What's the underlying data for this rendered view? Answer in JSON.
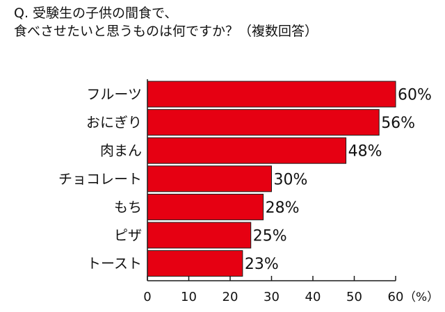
{
  "title": {
    "line1": "Q. 受験生の子供の間食で、",
    "line2": "食べさせたいと思うものは何ですか？（複数回答）"
  },
  "colors": {
    "bar": "#e60012",
    "bar_stroke": "#1a1a1a",
    "axis": "#1a1a1a",
    "background": "#ffffff"
  },
  "chart_data": {
    "type": "bar",
    "orientation": "horizontal",
    "categories": [
      "フルーツ",
      "おにぎり",
      "肉まん",
      "チョコレート",
      "もち",
      "ピザ",
      "トースト"
    ],
    "values": [
      60,
      56,
      48,
      30,
      28,
      25,
      23
    ],
    "value_labels": [
      "60%",
      "56%",
      "48%",
      "30%",
      "28%",
      "25%",
      "23%"
    ],
    "xlim": [
      0,
      60
    ],
    "xticks": [
      0,
      10,
      20,
      30,
      40,
      50,
      60
    ],
    "x_unit": "（%）",
    "grid": false
  }
}
